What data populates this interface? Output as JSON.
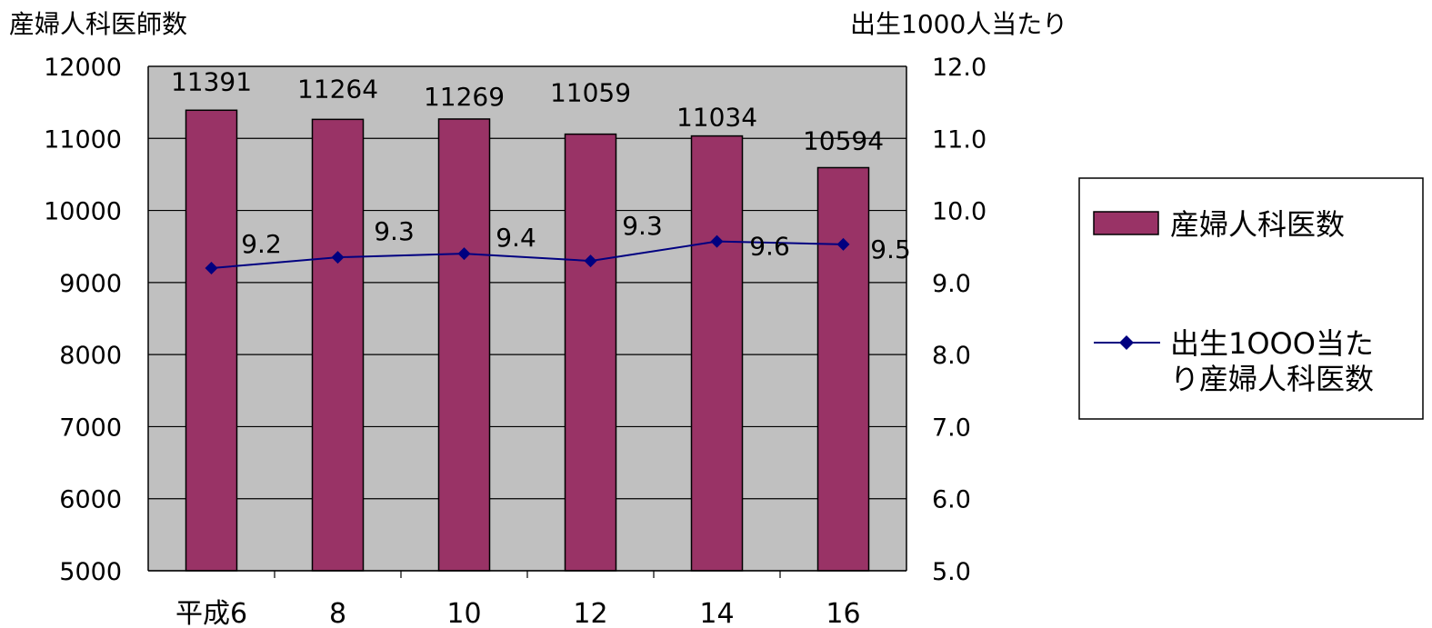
{
  "chart_data": {
    "type": "bar",
    "y_axis_title_left": "産婦人科医師数",
    "y_axis_title_right": "出生1000人当たり",
    "categories": [
      "平成6",
      "8",
      "10",
      "12",
      "14",
      "16"
    ],
    "series": [
      {
        "name": "産婦人科医数",
        "type": "bar",
        "axis": "left",
        "values": [
          11391,
          11264,
          11269,
          11059,
          11034,
          10594
        ],
        "labels": [
          "11391",
          "11264",
          "11269",
          "11059",
          "11034",
          "10594"
        ],
        "color": "#993366"
      },
      {
        "name_lines": [
          "出生1OOO当た",
          "り産婦人科医数"
        ],
        "type": "line",
        "axis": "right",
        "values": [
          9.2,
          9.35,
          9.4,
          9.3,
          9.57,
          9.53
        ],
        "labels": [
          "9.2",
          "9.3",
          "9.4",
          "9.3",
          "9.6",
          "9.5"
        ],
        "color": "#000080"
      }
    ],
    "y_left": {
      "min": 5000,
      "max": 12000,
      "step": 1000,
      "ticks": [
        "5000",
        "6000",
        "7000",
        "8000",
        "9000",
        "10000",
        "11000",
        "12000"
      ]
    },
    "y_right": {
      "min": 5.0,
      "max": 12.0,
      "step": 1.0,
      "ticks": [
        "5.0",
        "6.0",
        "7.0",
        "8.0",
        "9.0",
        "10.0",
        "11.0",
        "12.0"
      ]
    },
    "plot_background": "#c0c0c0",
    "grid": "horizontal",
    "legend_position": "right"
  }
}
